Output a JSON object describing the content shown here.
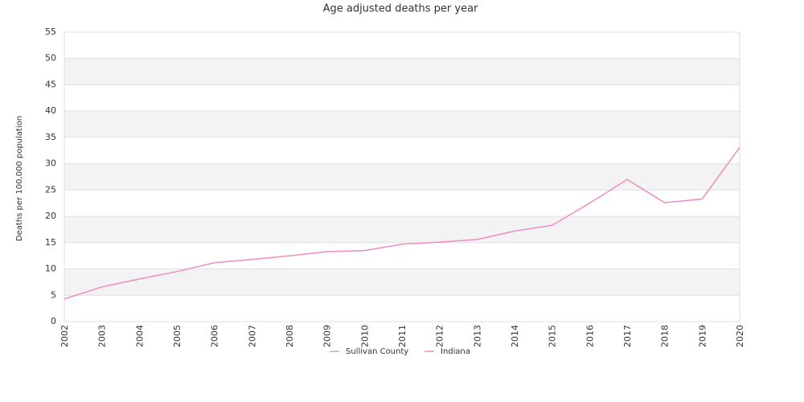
{
  "chart_data": {
    "type": "line",
    "title": "Age adjusted deaths per year",
    "y_label": "Deaths per 100,000 population",
    "categories": [
      "2002",
      "2003",
      "2004",
      "2005",
      "2006",
      "2007",
      "2008",
      "2009",
      "2010",
      "2011",
      "2012",
      "2013",
      "2014",
      "2015",
      "2016",
      "2017",
      "2018",
      "2019",
      "2020"
    ],
    "series": [
      {
        "name": "Sullivan County",
        "color": "#8fc1e3",
        "values": [
          null,
          null,
          null,
          null,
          null,
          null,
          null,
          null,
          null,
          null,
          null,
          null,
          null,
          null,
          null,
          null,
          null,
          null,
          null
        ]
      },
      {
        "name": "Indiana",
        "color": "#f08cc0",
        "values": [
          4.3,
          6.6,
          8.1,
          9.5,
          11.2,
          11.8,
          12.5,
          13.3,
          13.5,
          14.7,
          15.1,
          15.6,
          17.2,
          18.3,
          22.5,
          27.0,
          22.6,
          23.3,
          33.1
        ]
      }
    ],
    "ylim": [
      0,
      55
    ],
    "yticks": [
      0,
      5,
      10,
      15,
      20,
      25,
      30,
      35,
      40,
      45,
      50,
      55
    ],
    "grid": true
  }
}
